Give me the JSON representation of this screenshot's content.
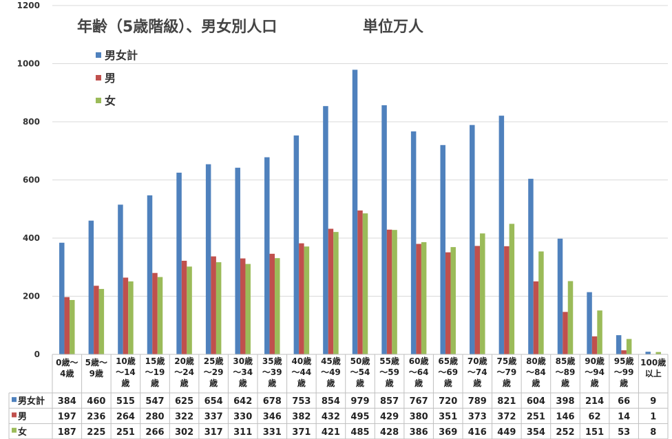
{
  "chart_data": {
    "type": "bar",
    "title": "年齢（5歳階級）、男女別人口",
    "unit": "単位万人",
    "ylim": [
      0,
      1200
    ],
    "yticks": [
      "0",
      "200",
      "400",
      "600",
      "800",
      "1000",
      "1200"
    ],
    "grid": true,
    "legend_position": "top-left",
    "categories": [
      [
        "0歳～",
        "4歳"
      ],
      [
        "5歳～",
        "9歳"
      ],
      [
        "10歳",
        "～14",
        "歳"
      ],
      [
        "15歳",
        "～19",
        "歳"
      ],
      [
        "20歳",
        "～24",
        "歳"
      ],
      [
        "25歳",
        "～29",
        "歳"
      ],
      [
        "30歳",
        "～34",
        "歳"
      ],
      [
        "35歳",
        "～39",
        "歳"
      ],
      [
        "40歳",
        "～44",
        "歳"
      ],
      [
        "45歳",
        "～49",
        "歳"
      ],
      [
        "50歳",
        "～54",
        "歳"
      ],
      [
        "55歳",
        "～59",
        "歳"
      ],
      [
        "60歳",
        "～64",
        "歳"
      ],
      [
        "65歳",
        "～69",
        "歳"
      ],
      [
        "70歳",
        "～74",
        "歳"
      ],
      [
        "75歳",
        "～79",
        "歳"
      ],
      [
        "80歳",
        "～84",
        "歳"
      ],
      [
        "85歳",
        "～89",
        "歳"
      ],
      [
        "90歳",
        "～94",
        "歳"
      ],
      [
        "95歳",
        "～99",
        "歳"
      ],
      [
        "100歳",
        "以上"
      ]
    ],
    "series": [
      {
        "name": "男女計",
        "color": "#4f81bd",
        "values": [
          384,
          460,
          515,
          547,
          625,
          654,
          642,
          678,
          753,
          854,
          979,
          857,
          767,
          720,
          789,
          821,
          604,
          398,
          214,
          66,
          9
        ]
      },
      {
        "name": "男",
        "color": "#c0504d",
        "values": [
          197,
          236,
          264,
          280,
          322,
          337,
          330,
          346,
          382,
          432,
          495,
          429,
          380,
          351,
          373,
          372,
          251,
          146,
          62,
          14,
          1
        ]
      },
      {
        "name": "女",
        "color": "#9bbb59",
        "values": [
          187,
          225,
          251,
          266,
          302,
          317,
          311,
          331,
          371,
          421,
          485,
          428,
          386,
          369,
          416,
          449,
          354,
          252,
          151,
          53,
          8
        ]
      }
    ]
  }
}
